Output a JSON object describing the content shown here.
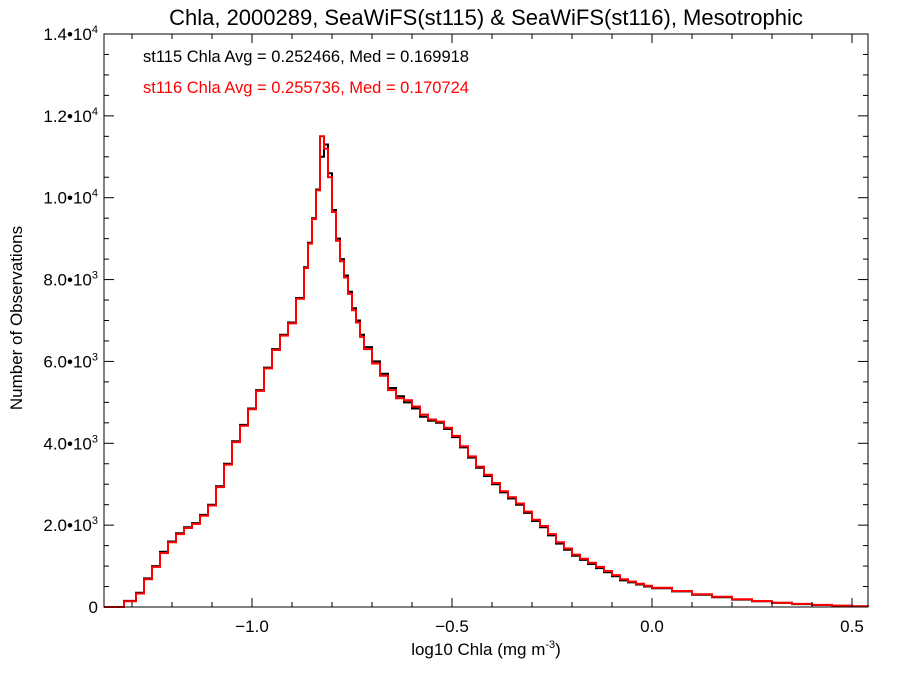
{
  "chart_data": {
    "type": "line",
    "title": "Chla, 2000289, SeaWiFS(st115) & SeaWiFS(st116), Mesotrophic",
    "xlabel_base": "log10 Chla (mg m",
    "xlabel_sup": "-3",
    "xlabel_close": ")",
    "ylabel": "Number of Observations",
    "xlim": [
      -1.37,
      0.54
    ],
    "ylim": [
      0,
      14000
    ],
    "x_ticks": [
      {
        "value": -1.0,
        "label": "-1.0"
      },
      {
        "value": -0.5,
        "label": "-0.5"
      },
      {
        "value": 0.0,
        "label": "0.0"
      },
      {
        "value": 0.5,
        "label": "0.5"
      }
    ],
    "x_minor_step": 0.1,
    "y_ticks": [
      {
        "value": 0,
        "label": "0",
        "exp": ""
      },
      {
        "value": 2000,
        "label": "2.0•10",
        "exp": "3"
      },
      {
        "value": 4000,
        "label": "4.0•10",
        "exp": "3"
      },
      {
        "value": 6000,
        "label": "6.0•10",
        "exp": "3"
      },
      {
        "value": 8000,
        "label": "8.0•10",
        "exp": "3"
      },
      {
        "value": 10000,
        "label": "1.0•10",
        "exp": "4"
      },
      {
        "value": 12000,
        "label": "1.2•10",
        "exp": "4"
      },
      {
        "value": 14000,
        "label": "1.4•10",
        "exp": "4"
      }
    ],
    "y_minor_step": 500,
    "annotations": [
      {
        "text": "st115 Chla Avg = 0.252466, Med = 0.169918",
        "color": "#000000"
      },
      {
        "text": "st116 Chla Avg = 0.255736, Med = 0.170724",
        "color": "#ff0000"
      }
    ],
    "series": [
      {
        "color": "#000000",
        "x": [
          -1.37,
          -1.32,
          -1.29,
          -1.27,
          -1.25,
          -1.23,
          -1.21,
          -1.19,
          -1.17,
          -1.15,
          -1.13,
          -1.11,
          -1.09,
          -1.07,
          -1.05,
          -1.03,
          -1.01,
          -0.99,
          -0.97,
          -0.95,
          -0.93,
          -0.91,
          -0.89,
          -0.87,
          -0.86,
          -0.85,
          -0.84,
          -0.83,
          -0.82,
          -0.81,
          -0.8,
          -0.79,
          -0.78,
          -0.77,
          -0.76,
          -0.75,
          -0.74,
          -0.73,
          -0.72,
          -0.7,
          -0.68,
          -0.66,
          -0.64,
          -0.62,
          -0.6,
          -0.58,
          -0.56,
          -0.54,
          -0.52,
          -0.5,
          -0.48,
          -0.46,
          -0.44,
          -0.42,
          -0.4,
          -0.38,
          -0.36,
          -0.34,
          -0.32,
          -0.3,
          -0.28,
          -0.26,
          -0.24,
          -0.22,
          -0.2,
          -0.18,
          -0.16,
          -0.14,
          -0.12,
          -0.1,
          -0.08,
          -0.06,
          -0.04,
          -0.02,
          0.0,
          0.05,
          0.1,
          0.15,
          0.2,
          0.25,
          0.3,
          0.35,
          0.4,
          0.45,
          0.5,
          0.54
        ],
        "y": [
          0,
          150,
          350,
          700,
          1000,
          1350,
          1600,
          1800,
          1950,
          2050,
          2250,
          2500,
          2950,
          3500,
          4050,
          4450,
          4850,
          5300,
          5850,
          6300,
          6650,
          6950,
          7550,
          8300,
          8900,
          9500,
          10200,
          11000,
          11300,
          10600,
          9700,
          9000,
          8500,
          8100,
          7700,
          7300,
          7000,
          6650,
          6350,
          6000,
          5700,
          5350,
          5150,
          5000,
          4850,
          4650,
          4550,
          4500,
          4350,
          4150,
          3900,
          3650,
          3400,
          3200,
          3000,
          2800,
          2650,
          2500,
          2300,
          2100,
          1950,
          1750,
          1550,
          1400,
          1250,
          1150,
          1050,
          950,
          850,
          750,
          650,
          600,
          550,
          500,
          460,
          380,
          300,
          240,
          180,
          140,
          100,
          70,
          50,
          30,
          15,
          10
        ]
      },
      {
        "color": "#ff0000",
        "x": [
          -1.37,
          -1.32,
          -1.29,
          -1.27,
          -1.25,
          -1.23,
          -1.21,
          -1.19,
          -1.17,
          -1.15,
          -1.13,
          -1.11,
          -1.09,
          -1.07,
          -1.05,
          -1.03,
          -1.01,
          -0.99,
          -0.97,
          -0.95,
          -0.93,
          -0.91,
          -0.89,
          -0.87,
          -0.86,
          -0.85,
          -0.84,
          -0.83,
          -0.82,
          -0.81,
          -0.8,
          -0.79,
          -0.78,
          -0.77,
          -0.76,
          -0.75,
          -0.74,
          -0.73,
          -0.72,
          -0.7,
          -0.68,
          -0.66,
          -0.64,
          -0.62,
          -0.6,
          -0.58,
          -0.56,
          -0.54,
          -0.52,
          -0.5,
          -0.48,
          -0.46,
          -0.44,
          -0.42,
          -0.4,
          -0.38,
          -0.36,
          -0.34,
          -0.32,
          -0.3,
          -0.28,
          -0.26,
          -0.24,
          -0.22,
          -0.2,
          -0.18,
          -0.16,
          -0.14,
          -0.12,
          -0.1,
          -0.08,
          -0.06,
          -0.04,
          -0.02,
          0.0,
          0.05,
          0.1,
          0.15,
          0.2,
          0.25,
          0.3,
          0.35,
          0.4,
          0.45,
          0.5,
          0.54
        ],
        "y": [
          0,
          140,
          330,
          680,
          980,
          1320,
          1580,
          1780,
          1930,
          2030,
          2230,
          2480,
          2930,
          3480,
          4030,
          4430,
          4830,
          5280,
          5830,
          6280,
          6630,
          6930,
          7530,
          8280,
          8880,
          9480,
          10180,
          11500,
          11200,
          10500,
          9650,
          8950,
          8450,
          8050,
          7650,
          7250,
          6950,
          6600,
          6300,
          5950,
          5650,
          5300,
          5100,
          5050,
          4900,
          4700,
          4580,
          4530,
          4380,
          4180,
          3930,
          3680,
          3430,
          3230,
          3030,
          2830,
          2680,
          2530,
          2330,
          2130,
          1980,
          1780,
          1580,
          1430,
          1280,
          1180,
          1080,
          980,
          880,
          780,
          680,
          620,
          570,
          520,
          470,
          390,
          310,
          250,
          190,
          145,
          105,
          75,
          52,
          32,
          16,
          10
        ]
      }
    ]
  }
}
